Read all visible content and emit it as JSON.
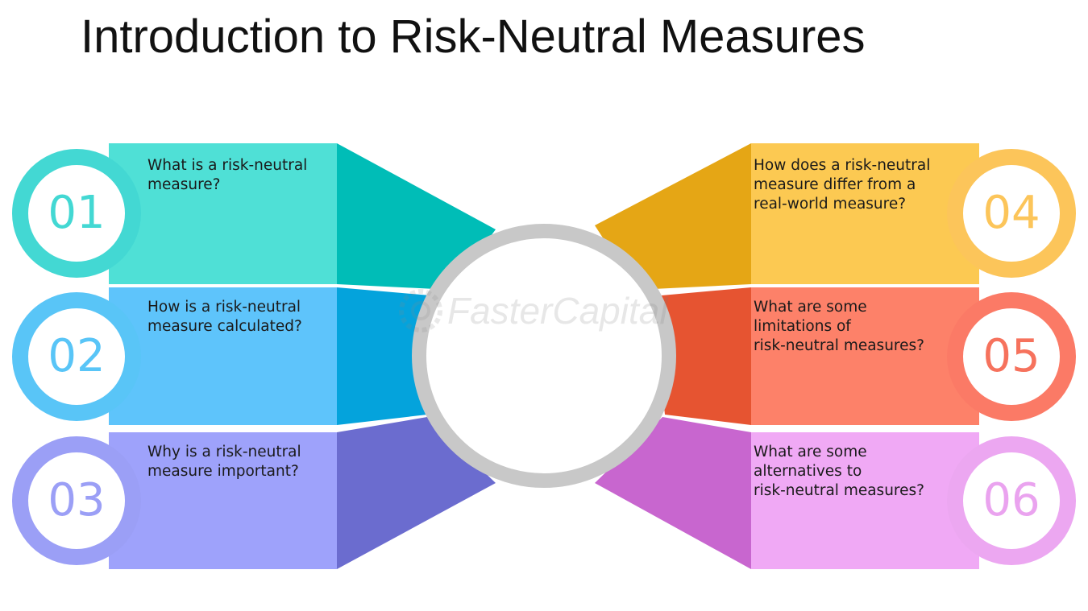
{
  "title": "Introduction to Risk-Neutral Measures",
  "watermark": "FasterCapital",
  "items": [
    {
      "number": "01",
      "lines": [
        "What is a risk-neutral",
        "measure?"
      ],
      "color_light": "#4fe0d6",
      "color_dark": "#00bdb7",
      "ring": "#43d8d3",
      "number_color": "#43d8d3"
    },
    {
      "number": "02",
      "lines": [
        "How is a risk-neutral",
        "measure calculated?"
      ],
      "color_light": "#5ec4fb",
      "color_dark": "#04a3dc",
      "ring": "#59c5f7",
      "number_color": "#59c5f7"
    },
    {
      "number": "03",
      "lines": [
        "Why is a risk-neutral",
        "measure important?"
      ],
      "color_light": "#9ea2fb",
      "color_dark": "#6b6ccf",
      "ring": "#9b9ff6",
      "number_color": "#9b9ff6"
    },
    {
      "number": "04",
      "lines": [
        "How does a risk-neutral",
        "measure differ from a",
        "real-world measure?"
      ],
      "color_light": "#fcc952",
      "color_dark": "#e5a615",
      "ring": "#fcc55a",
      "number_color": "#fcc55a"
    },
    {
      "number": "05",
      "lines": [
        "What are some",
        "limitations of",
        "risk-neutral measures?"
      ],
      "color_light": "#fd8169",
      "color_dark": "#e65431",
      "ring": "#fb7a66",
      "number_color": "#f6725d"
    },
    {
      "number": "06",
      "lines": [
        "What are some",
        "alternatives to",
        "risk-neutral measures?"
      ],
      "color_light": "#f0a9f5",
      "color_dark": "#c866cf",
      "ring": "#eca7f1",
      "number_color": "#eaa3ef"
    }
  ]
}
